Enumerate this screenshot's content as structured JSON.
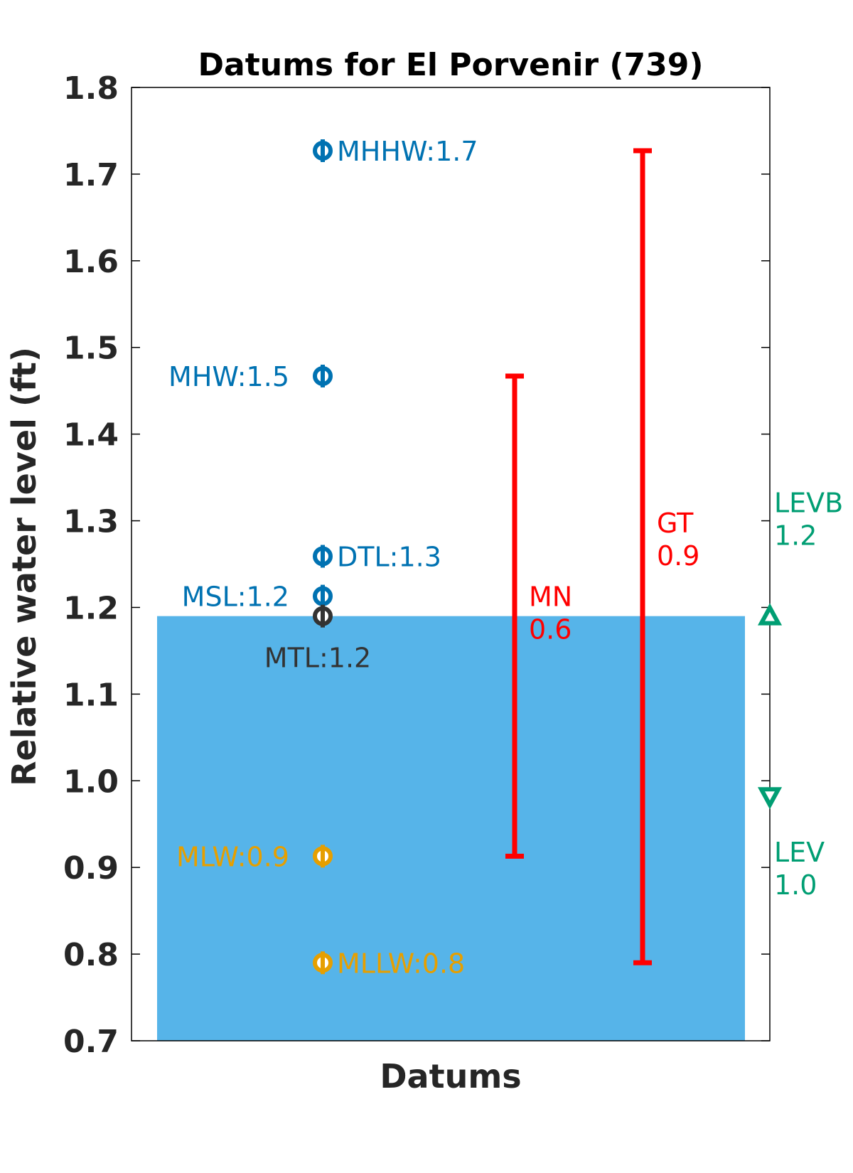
{
  "chart_data": {
    "type": "scatter",
    "title": "Datums for El Porvenir (739)",
    "xlabel": "Datums",
    "ylabel": "Relative water level (ft)",
    "ylim": [
      0.7,
      1.8
    ],
    "yticks": [
      "0.7",
      "0.8",
      "0.9",
      "1.0",
      "1.1",
      "1.2",
      "1.3",
      "1.4",
      "1.5",
      "1.6",
      "1.7",
      "1.8"
    ],
    "grid": false,
    "water_fill": {
      "top": 1.19,
      "color": "#56B4E9"
    },
    "datums": [
      {
        "key": "mhhw",
        "label": "MHHW:1.7",
        "value": 1.727,
        "color": "#0072B2",
        "label_side": "right"
      },
      {
        "key": "mhw",
        "label": "MHW:1.5",
        "value": 1.467,
        "color": "#0072B2",
        "label_side": "left"
      },
      {
        "key": "dtl",
        "label": "DTL:1.3",
        "value": 1.259,
        "color": "#0072B2",
        "label_side": "right"
      },
      {
        "key": "msl",
        "label": "MSL:1.2",
        "value": 1.213,
        "color": "#0072B2",
        "label_side": "left"
      },
      {
        "key": "mtl",
        "label": "MTL:1.2",
        "value": 1.19,
        "color": "#333333",
        "label_side": "below"
      },
      {
        "key": "mlw",
        "label": "MLW:0.9",
        "value": 0.913,
        "color": "#E69F00",
        "label_side": "left"
      },
      {
        "key": "mllw",
        "label": "MLLW:0.8",
        "value": 0.79,
        "color": "#E69F00",
        "label_side": "right"
      }
    ],
    "ranges": [
      {
        "key": "mn",
        "name": "MN",
        "value_label": "0.6",
        "low": 0.913,
        "high": 1.467,
        "color": "#FF0000"
      },
      {
        "key": "gt",
        "name": "GT",
        "value_label": "0.9",
        "low": 0.79,
        "high": 1.727,
        "color": "#FF0000"
      }
    ],
    "extremes": [
      {
        "key": "levb",
        "name": "LEVB",
        "value_label": "1.2",
        "value": 1.19,
        "marker": "triangle-up",
        "color": "#009E73"
      },
      {
        "key": "lev",
        "name": "LEV",
        "value_label": "1.0",
        "value": 0.982,
        "marker": "triangle-down",
        "color": "#009E73"
      }
    ]
  }
}
